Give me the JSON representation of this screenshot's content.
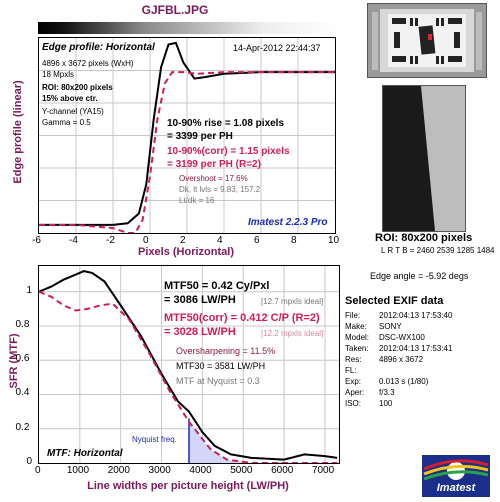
{
  "file_title": "GJFBL.JPG",
  "edge_chart": {
    "heading": "Edge profile: Horizontal",
    "timestamp": "14-Apr-2012 22:44:37",
    "image_size": "4896 x 3672 pixels (WxH)",
    "megapixels": "18 Mpxls",
    "roi_line1": "ROI: 80x200 pixels",
    "roi_line2": "15% above ctr.",
    "channel": "Y-channel  (YA15)",
    "gamma": "Gamma = 0.5",
    "rise_line1": "10-90% rise = 1.08 pixels",
    "rise_line2": "= 3399 per PH",
    "corr_line1": "10-90%(corr) = 1.15 pixels",
    "corr_line2": "= 3199 per PH   (R=2)",
    "overshoot": "Overshoot = 17.6%",
    "dk_lt": "Dk, lt lvls = 9.83, 157.2",
    "lt_dk": "Lt/dk = 16",
    "version": "Imatest 2.2.3 Pro",
    "ylabel": "Edge profile (linear)",
    "xlabel": "Pixels (Horizontal)",
    "xticks": [
      "-6",
      "-4",
      "-2",
      "0",
      "2",
      "4",
      "6",
      "8",
      "10"
    ]
  },
  "mtf_chart": {
    "mtf50": "MTF50 = 0.42 Cy/Pxl",
    "mtf50_lw": "= 3086 LW/PH",
    "mtf50_ideal": "[12.7 mpxls ideal]",
    "mtf50_corr": "MTF50(corr) = 0.412 C/P  (R=2)",
    "mtf50_corr_lw": "= 3028 LW/PH",
    "mtf50_corr_ideal": "[12.2 mpxls ideal]",
    "oversharpening": "Oversharpening = 11.5%",
    "mtf30": "MTF30 = 3581 LW/PH",
    "mtf_nyquist": "MTF at Nyquist = 0.3",
    "nyquist_label": "Nyquist freq.",
    "heading": "MTF: Horizontal",
    "ylabel": "SFR (MTF)",
    "xlabel": "Line widths per picture height (LW/PH)",
    "xticks": [
      "0",
      "1000",
      "2000",
      "3000",
      "4000",
      "5000",
      "6000",
      "7000"
    ],
    "yticks": [
      "0",
      "0.2",
      "0.4",
      "0.6",
      "0.8",
      "1"
    ]
  },
  "roi_caption": "ROI: 80x200 pixels",
  "lrtb": "L R  T B = 2460 2539  1285 1484",
  "edge_angle": "Edge angle = -5.92 degs",
  "exif": {
    "heading": "Selected EXIF data",
    "rows": [
      {
        "label": "File:",
        "value": "2012:04:13 17:53:40"
      },
      {
        "label": "Make:",
        "value": "SONY"
      },
      {
        "label": "Model:",
        "value": "DSC-WX100"
      },
      {
        "label": "Taken:",
        "value": "2012:04:13 17:53:41"
      },
      {
        "label": "Res:",
        "value": "4896 x 3672"
      },
      {
        "label": "FL:",
        "value": ""
      },
      {
        "label": "Exp:",
        "value": "0.013 s  (1/80)"
      },
      {
        "label": "Aper:",
        "value": "f/3.3"
      },
      {
        "label": "ISO:",
        "value": "100"
      }
    ]
  },
  "logo_text": "Imatest",
  "chart_data": [
    {
      "type": "line",
      "title": "Edge profile: Horizontal",
      "xlabel": "Pixels (Horizontal)",
      "ylabel": "Edge profile (linear)",
      "xlim": [
        -6,
        10
      ],
      "ylim": [
        0,
        1.2
      ],
      "grid": true,
      "series": [
        {
          "values": [
            [
              -6,
              0.05
            ],
            [
              -4,
              0.05
            ],
            [
              -2,
              0.05
            ],
            [
              -1.2,
              0.06
            ],
            [
              -0.6,
              0.12
            ],
            [
              -0.2,
              0.3
            ],
            [
              0.2,
              0.7
            ],
            [
              0.6,
              1.02
            ],
            [
              1.0,
              1.16
            ],
            [
              1.4,
              1.17
            ],
            [
              1.8,
              1.05
            ],
            [
              2.4,
              0.95
            ],
            [
              3,
              0.96
            ],
            [
              4,
              0.98
            ],
            [
              6,
              0.99
            ],
            [
              8,
              0.99
            ],
            [
              10,
              0.99
            ]
          ]
        },
        {
          "values": [
            [
              -6,
              0.05
            ],
            [
              -4,
              0.05
            ],
            [
              -2,
              0.03
            ],
            [
              -1.2,
              0.0
            ],
            [
              -0.8,
              0.0
            ],
            [
              -0.4,
              0.08
            ],
            [
              0,
              0.35
            ],
            [
              0.4,
              0.7
            ],
            [
              0.8,
              0.92
            ],
            [
              1.2,
              0.99
            ],
            [
              1.8,
              0.99
            ],
            [
              2.6,
              0.98
            ],
            [
              4,
              0.99
            ],
            [
              6,
              0.99
            ],
            [
              10,
              0.99
            ]
          ]
        }
      ]
    },
    {
      "type": "line",
      "title": "MTF: Horizontal",
      "xlabel": "Line widths per picture height (LW/PH)",
      "ylabel": "SFR (MTF)",
      "xlim": [
        0,
        7344
      ],
      "ylim": [
        0,
        1.15
      ],
      "grid": true,
      "series": [
        {
          "values": [
            [
              0,
              1.0
            ],
            [
              300,
              1.03
            ],
            [
              600,
              1.07
            ],
            [
              900,
              1.1
            ],
            [
              1100,
              1.12
            ],
            [
              1300,
              1.11
            ],
            [
              1600,
              1.06
            ],
            [
              2000,
              0.92
            ],
            [
              2500,
              0.74
            ],
            [
              3000,
              0.52
            ],
            [
              3400,
              0.36
            ],
            [
              3672,
              0.3
            ],
            [
              4000,
              0.18
            ],
            [
              4300,
              0.1
            ],
            [
              4700,
              0.05
            ],
            [
              5200,
              0.03
            ],
            [
              6000,
              0.02
            ],
            [
              6500,
              0.05
            ],
            [
              7000,
              0.04
            ],
            [
              7300,
              0.03
            ]
          ]
        },
        {
          "values": [
            [
              0,
              1.0
            ],
            [
              300,
              0.97
            ],
            [
              600,
              0.92
            ],
            [
              900,
              0.89
            ],
            [
              1200,
              0.9
            ],
            [
              1500,
              0.92
            ],
            [
              1800,
              0.93
            ],
            [
              2200,
              0.84
            ],
            [
              2700,
              0.64
            ],
            [
              3200,
              0.42
            ],
            [
              3672,
              0.24
            ],
            [
              4200,
              0.08
            ],
            [
              4600,
              0.02
            ],
            [
              5200,
              0.0
            ],
            [
              6000,
              0.0
            ],
            [
              7300,
              0.0
            ]
          ]
        }
      ],
      "annotations": [
        {
          "x": 3672,
          "label": "Nyquist freq."
        }
      ]
    }
  ]
}
